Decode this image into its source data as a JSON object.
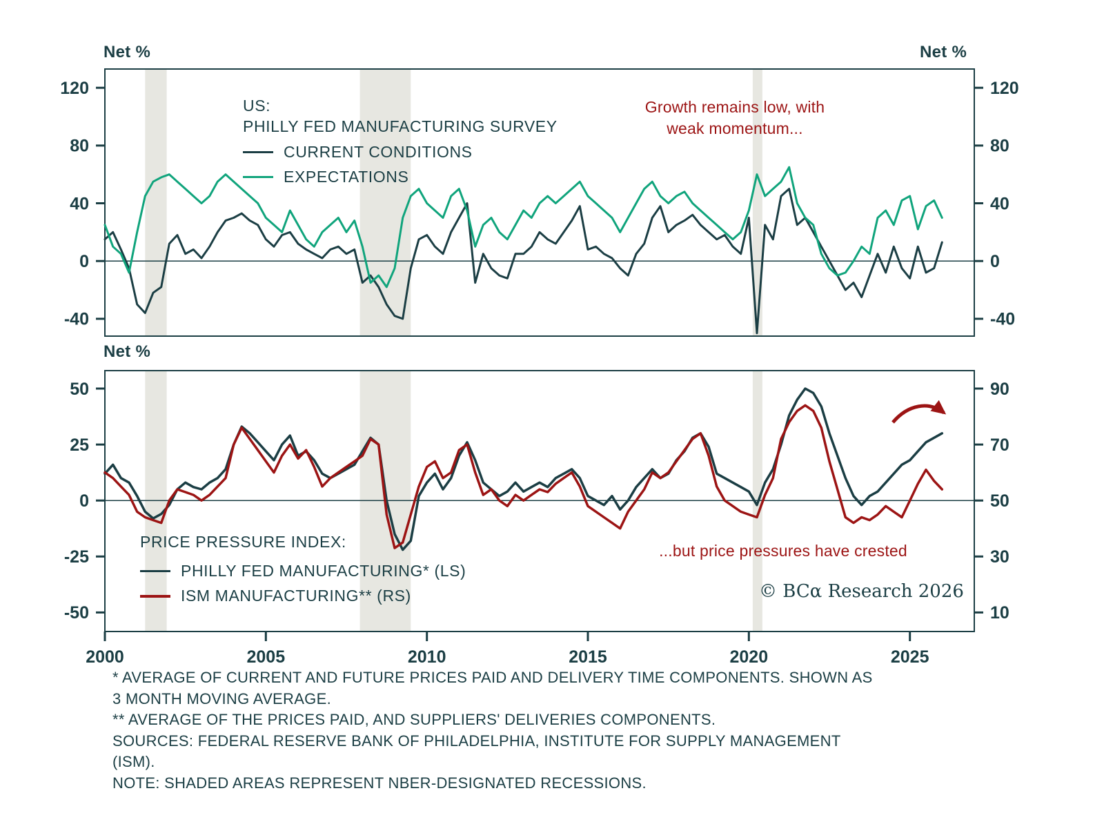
{
  "colors": {
    "dark": "#1b3e44",
    "green": "#10a47c",
    "red": "#9c1414",
    "recession": "#e7e7e1"
  },
  "axis_labels": {
    "top_left": "Net %",
    "top_right": "Net %",
    "bottom_left": "Net %"
  },
  "annotations": {
    "growth": [
      "Growth remains low, with",
      "weak momentum..."
    ],
    "crested": "...but price pressures have crested"
  },
  "copyright": "© BCα Research 2026",
  "footnotes": {
    "lines": [
      "* AVERAGE OF CURRENT AND FUTURE PRICES PAID AND DELIVERY TIME COMPONENTS. SHOWN AS",
      "3 MONTH MOVING AVERAGE.",
      "** AVERAGE OF THE PRICES PAID, AND SUPPLIERS' DELIVERIES COMPONENTS.",
      "SOURCES: FEDERAL RESERVE BANK OF PHILADELPHIA, INSTITUTE FOR SUPPLY MANAGEMENT",
      "(ISM).",
      "NOTE: SHADED AREAS REPRESENT NBER-DESIGNATED RECESSIONS."
    ]
  },
  "x_axis": {
    "min": 2000,
    "max": 2027,
    "ticks": [
      2000,
      2005,
      2010,
      2015,
      2020,
      2025
    ]
  },
  "recessions": [
    [
      2001.25,
      2001.92
    ],
    [
      2007.92,
      2009.5
    ],
    [
      2020.12,
      2020.42
    ]
  ],
  "chart_data": [
    {
      "type": "line",
      "title_lines": [
        "US:",
        "PHILLY FED MANUFACTURING SURVEY"
      ],
      "ylabel": "Net %",
      "y_ticks": [
        120,
        80,
        40,
        0,
        -40
      ],
      "ylim": [
        -52,
        133
      ],
      "x_unit": "year",
      "series": [
        {
          "name": "CURRENT CONDITIONS",
          "color_key": "dark",
          "start": 2000,
          "step": 0.25,
          "values": [
            15,
            20,
            8,
            -5,
            -30,
            -36,
            -22,
            -18,
            12,
            18,
            5,
            8,
            2,
            10,
            20,
            28,
            30,
            33,
            28,
            25,
            15,
            10,
            18,
            20,
            12,
            8,
            5,
            2,
            8,
            10,
            5,
            8,
            -15,
            -10,
            -18,
            -30,
            -38,
            -40,
            -5,
            15,
            18,
            10,
            5,
            20,
            30,
            40,
            -15,
            5,
            -5,
            -10,
            -12,
            5,
            5,
            10,
            20,
            15,
            12,
            20,
            28,
            38,
            8,
            10,
            5,
            2,
            -5,
            -10,
            5,
            12,
            30,
            38,
            20,
            25,
            28,
            32,
            25,
            20,
            15,
            18,
            10,
            5,
            30,
            -50,
            25,
            15,
            45,
            50,
            25,
            30,
            20,
            10,
            0,
            -10,
            -20,
            -15,
            -25,
            -10,
            5,
            -8,
            10,
            -5,
            -12,
            10,
            -8,
            -5,
            13
          ]
        },
        {
          "name": "EXPECTATIONS",
          "color_key": "green",
          "start": 2000,
          "step": 0.25,
          "values": [
            25,
            10,
            5,
            -8,
            20,
            45,
            55,
            58,
            60,
            55,
            50,
            45,
            40,
            45,
            55,
            60,
            55,
            50,
            45,
            40,
            30,
            25,
            20,
            35,
            25,
            15,
            10,
            20,
            25,
            30,
            20,
            28,
            10,
            -15,
            -10,
            -18,
            -5,
            30,
            45,
            50,
            40,
            35,
            30,
            45,
            50,
            35,
            10,
            25,
            30,
            20,
            15,
            25,
            35,
            30,
            40,
            45,
            40,
            45,
            50,
            55,
            45,
            40,
            35,
            30,
            20,
            30,
            40,
            50,
            55,
            45,
            40,
            45,
            48,
            40,
            35,
            30,
            25,
            20,
            15,
            20,
            35,
            60,
            45,
            50,
            55,
            65,
            40,
            30,
            25,
            5,
            -5,
            -10,
            -8,
            0,
            10,
            5,
            30,
            35,
            25,
            42,
            45,
            22,
            38,
            42,
            30
          ]
        }
      ]
    },
    {
      "type": "line",
      "title": "PRICE PRESSURE INDEX:",
      "ylabel_left": "Net %",
      "left_ticks": [
        50,
        25,
        0,
        -25,
        -50
      ],
      "right_ticks": [
        90,
        70,
        50,
        30,
        10
      ],
      "ylim_left": [
        -58.5,
        58
      ],
      "right_axis": {
        "offset": 50,
        "scale": 0.8,
        "note": "right = left*0.8 + 50"
      },
      "x_unit": "year",
      "series": [
        {
          "name": "PHILLY FED MANUFACTURING* (LS)",
          "axis": "left",
          "color_key": "dark",
          "start": 2000,
          "step": 0.25,
          "values": [
            12,
            16,
            10,
            8,
            2,
            -5,
            -8,
            -6,
            -2,
            5,
            8,
            6,
            5,
            8,
            10,
            14,
            25,
            33,
            30,
            26,
            22,
            18,
            25,
            29,
            20,
            22,
            18,
            12,
            10,
            12,
            14,
            16,
            22,
            28,
            25,
            0,
            -15,
            -22,
            -18,
            2,
            8,
            12,
            5,
            10,
            20,
            26,
            18,
            8,
            5,
            2,
            4,
            8,
            4,
            6,
            8,
            6,
            10,
            12,
            14,
            10,
            2,
            0,
            -2,
            2,
            -4,
            0,
            6,
            10,
            14,
            10,
            12,
            18,
            22,
            28,
            30,
            24,
            12,
            10,
            8,
            6,
            4,
            -2,
            8,
            14,
            25,
            38,
            45,
            50,
            48,
            42,
            30,
            20,
            10,
            2,
            -2,
            2,
            4,
            8,
            12,
            16,
            18,
            22,
            26,
            28,
            30
          ]
        },
        {
          "name": "ISM MANUFACTURING** (RS)",
          "axis": "right",
          "color_key": "red",
          "start": 2000,
          "step": 0.25,
          "values": [
            60,
            58,
            55,
            52,
            46,
            44,
            43,
            42,
            50,
            54,
            53,
            52,
            50,
            52,
            55,
            58,
            70,
            76,
            72,
            68,
            64,
            60,
            66,
            70,
            65,
            68,
            62,
            55,
            58,
            60,
            62,
            64,
            66,
            72,
            70,
            45,
            33,
            35,
            45,
            55,
            62,
            64,
            58,
            60,
            68,
            70,
            60,
            52,
            54,
            50,
            48,
            52,
            50,
            52,
            54,
            53,
            56,
            58,
            60,
            55,
            48,
            46,
            44,
            42,
            40,
            46,
            50,
            54,
            60,
            58,
            60,
            64,
            68,
            72,
            74,
            66,
            55,
            50,
            48,
            46,
            45,
            44,
            52,
            58,
            72,
            78,
            82,
            84,
            82,
            76,
            64,
            54,
            44,
            42,
            44,
            43,
            45,
            48,
            46,
            44,
            50,
            56,
            61,
            57,
            54
          ]
        }
      ]
    }
  ]
}
